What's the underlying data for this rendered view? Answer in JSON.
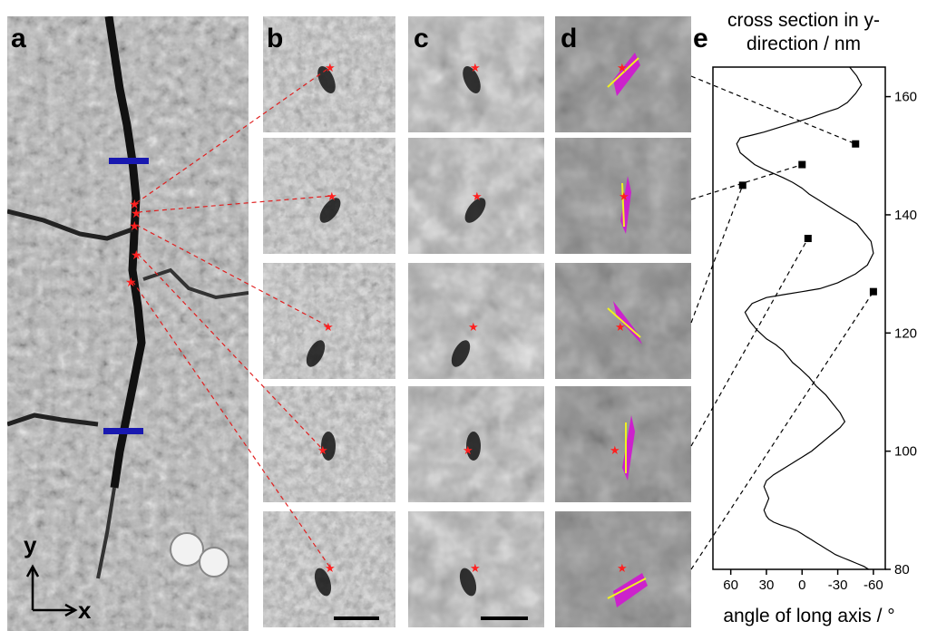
{
  "figure": {
    "panel_labels": [
      "a",
      "b",
      "c",
      "d",
      "e"
    ],
    "axes_label_x": "x",
    "axes_label_y": "y",
    "colors": {
      "marker_star": "#ff2020",
      "connector_red": "#e02020",
      "scale_bar_blue": "#1818b0",
      "particle_magenta": "#cc22cc",
      "long_axis_yellow": "#f0f020",
      "curve": "#000000"
    }
  },
  "chart_data": {
    "type": "line",
    "title": "cross section in y-direction / nm",
    "xlabel": "angle of long axis / °",
    "ylabel": "",
    "x_reversed": true,
    "xlim": [
      75,
      -70
    ],
    "ylim": [
      80,
      165
    ],
    "x_ticks": [
      60,
      30,
      0,
      -30,
      -60
    ],
    "x_tick_labels": [
      "60",
      "30",
      "0",
      "-30",
      "-60"
    ],
    "y_ticks": [
      80,
      100,
      120,
      140,
      160
    ],
    "y_tick_labels": [
      "80",
      "100",
      "120",
      "140",
      "160"
    ],
    "series": [
      {
        "x": [
          -40,
          -46,
          -50,
          -45,
          -38,
          -30,
          -22,
          -15,
          -8,
          0,
          8,
          16,
          24,
          32,
          42,
          52,
          55,
          52,
          46,
          40,
          32,
          24,
          16,
          8,
          0,
          -6,
          -14,
          -22,
          -30,
          -38,
          -46,
          -52,
          -58,
          -60,
          -55,
          -45,
          -30,
          -15,
          0,
          15,
          30,
          42,
          48,
          44,
          38,
          30,
          22,
          16,
          12,
          8,
          2,
          -6,
          -12,
          -20,
          -26,
          -32,
          -36,
          -32,
          -26,
          -20,
          -14,
          -8,
          0,
          8,
          16,
          24,
          30,
          32,
          30,
          28,
          30,
          32,
          30,
          28,
          24,
          18,
          10,
          4,
          0,
          -4,
          -8,
          -12,
          -16,
          -20,
          -24,
          -28,
          -34,
          -40,
          -46,
          -52,
          -56
        ],
        "y": [
          165,
          163.5,
          162,
          160.5,
          159,
          158,
          157.5,
          157,
          156.5,
          156,
          155.5,
          155,
          154.5,
          154,
          153.5,
          153,
          152,
          150.5,
          149.5,
          148.5,
          147.7,
          147,
          146.3,
          145.5,
          144.5,
          143.5,
          142.5,
          141.5,
          140.5,
          139.5,
          138.5,
          137,
          135.5,
          133.5,
          131.5,
          130,
          128.5,
          127.5,
          127,
          126.5,
          126,
          125,
          123.5,
          122,
          120.5,
          119,
          118,
          117,
          116,
          115,
          114,
          112.5,
          111,
          109.5,
          108,
          106.5,
          105,
          104,
          103,
          102,
          101,
          100,
          99,
          98,
          97,
          96,
          95,
          94,
          93,
          92,
          91,
          90,
          89,
          88.5,
          88,
          87.5,
          87,
          86.5,
          86,
          85.5,
          85,
          84.5,
          84,
          83.5,
          83,
          82.5,
          82,
          81.5,
          81,
          80.5,
          80
        ]
      }
    ],
    "markers": [
      {
        "x": -60,
        "y": 127
      },
      {
        "x": 50,
        "y": 145
      },
      {
        "x": -45,
        "y": 152
      },
      {
        "x": 0,
        "y": 148.5
      },
      {
        "x": -5,
        "y": 136
      }
    ]
  }
}
